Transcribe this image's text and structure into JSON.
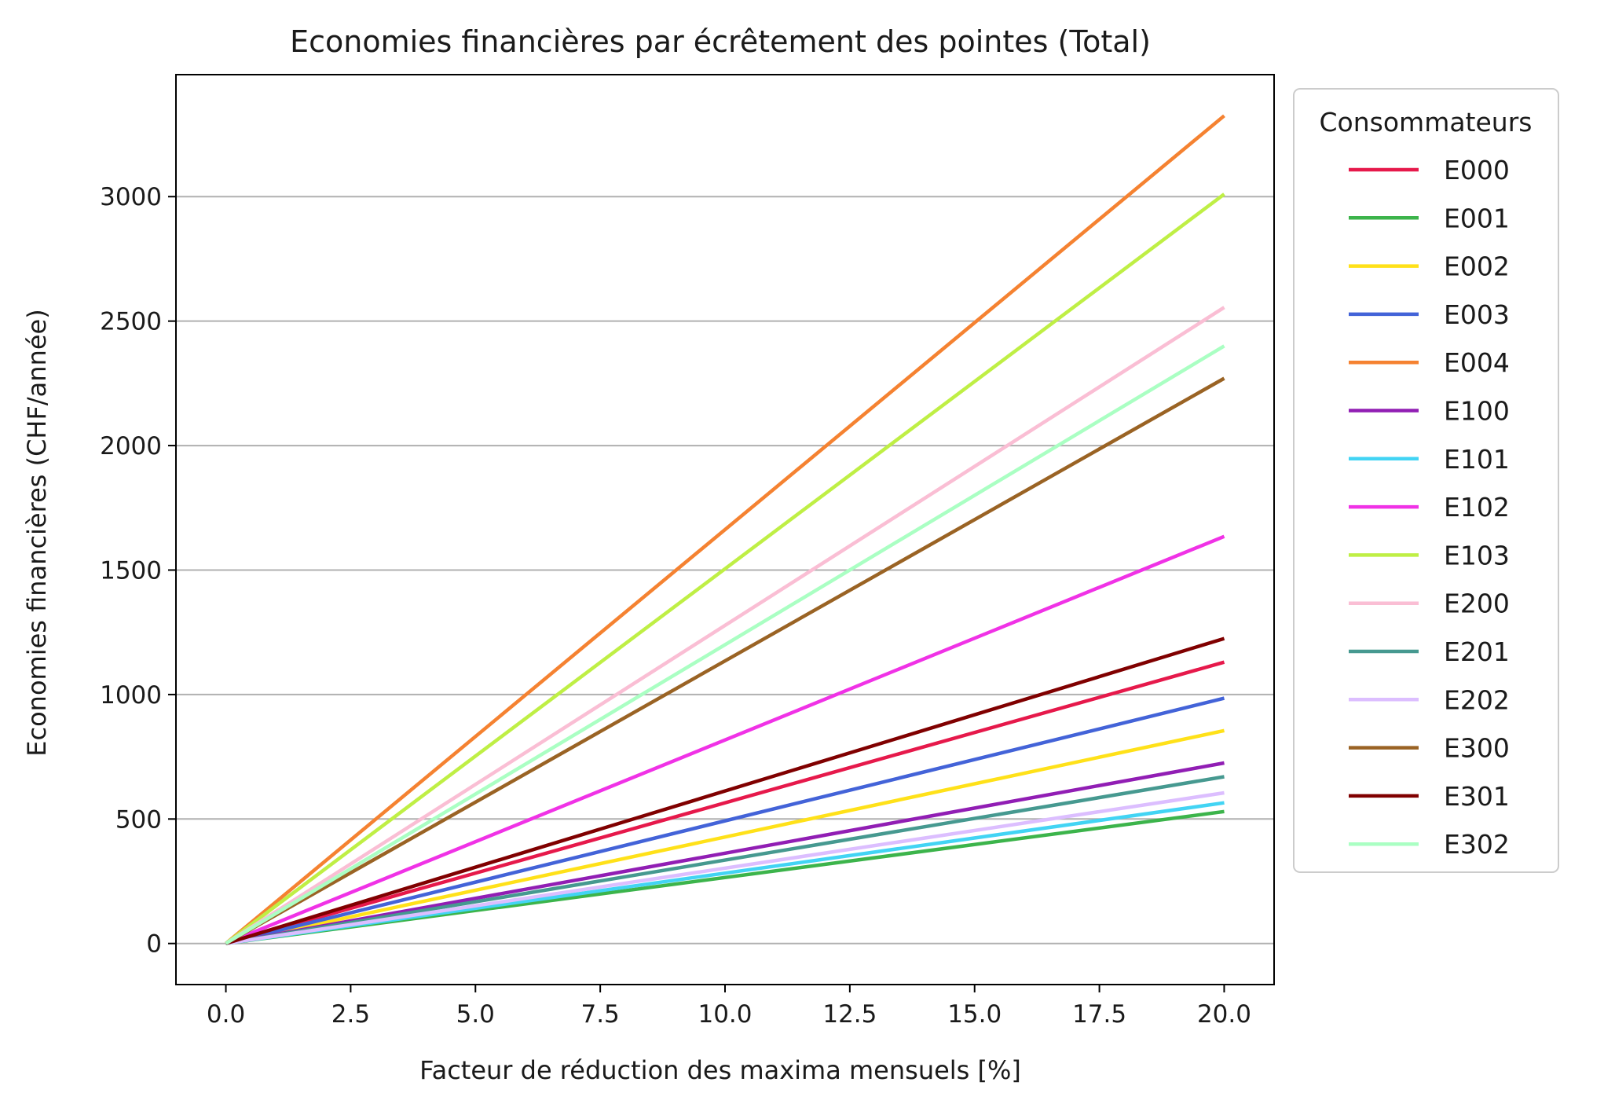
{
  "chart_data": {
    "type": "line",
    "title": "Economies financières par écrêtement des pointes (Total)",
    "xlabel": "Facteur de réduction des maxima mensuels [%]",
    "ylabel": "Economies financières (CHF/année)",
    "xlim": [
      -1,
      21
    ],
    "ylim": [
      -165,
      3490
    ],
    "xticks": [
      0,
      2.5,
      5,
      7.5,
      10,
      12.5,
      15,
      17.5,
      20
    ],
    "xtick_labels": [
      "0.0",
      "2.5",
      "5.0",
      "7.5",
      "10.0",
      "12.5",
      "15.0",
      "17.5",
      "20.0"
    ],
    "yticks": [
      0,
      500,
      1000,
      1500,
      2000,
      2500,
      3000
    ],
    "ytick_labels": [
      "0",
      "500",
      "1000",
      "1500",
      "2000",
      "2500",
      "3000"
    ],
    "grid": "horizontal",
    "legend": {
      "title": "Consommateurs",
      "placement": "outside-right"
    },
    "x": [
      0,
      20
    ],
    "series": [
      {
        "name": "E000",
        "color": "#e6194b",
        "values": [
          0,
          1130
        ]
      },
      {
        "name": "E001",
        "color": "#3cb44b",
        "values": [
          0,
          530
        ]
      },
      {
        "name": "E002",
        "color": "#ffe119",
        "values": [
          0,
          855
        ]
      },
      {
        "name": "E003",
        "color": "#4363d8",
        "values": [
          0,
          985
        ]
      },
      {
        "name": "E004",
        "color": "#f58231",
        "values": [
          0,
          3325
        ]
      },
      {
        "name": "E100",
        "color": "#911eb4",
        "values": [
          0,
          725
        ]
      },
      {
        "name": "E101",
        "color": "#42d4f4",
        "values": [
          0,
          565
        ]
      },
      {
        "name": "E102",
        "color": "#f032e6",
        "values": [
          0,
          1635
        ]
      },
      {
        "name": "E103",
        "color": "#bfef45",
        "values": [
          0,
          3010
        ]
      },
      {
        "name": "E200",
        "color": "#fabed4",
        "values": [
          0,
          2555
        ]
      },
      {
        "name": "E201",
        "color": "#469990",
        "values": [
          0,
          670
        ]
      },
      {
        "name": "E202",
        "color": "#dcbeff",
        "values": [
          0,
          605
        ]
      },
      {
        "name": "E300",
        "color": "#9a6324",
        "values": [
          0,
          2270
        ]
      },
      {
        "name": "E301",
        "color": "#800000",
        "values": [
          0,
          1225
        ]
      },
      {
        "name": "E302",
        "color": "#aaffc3",
        "values": [
          0,
          2400
        ]
      }
    ]
  }
}
